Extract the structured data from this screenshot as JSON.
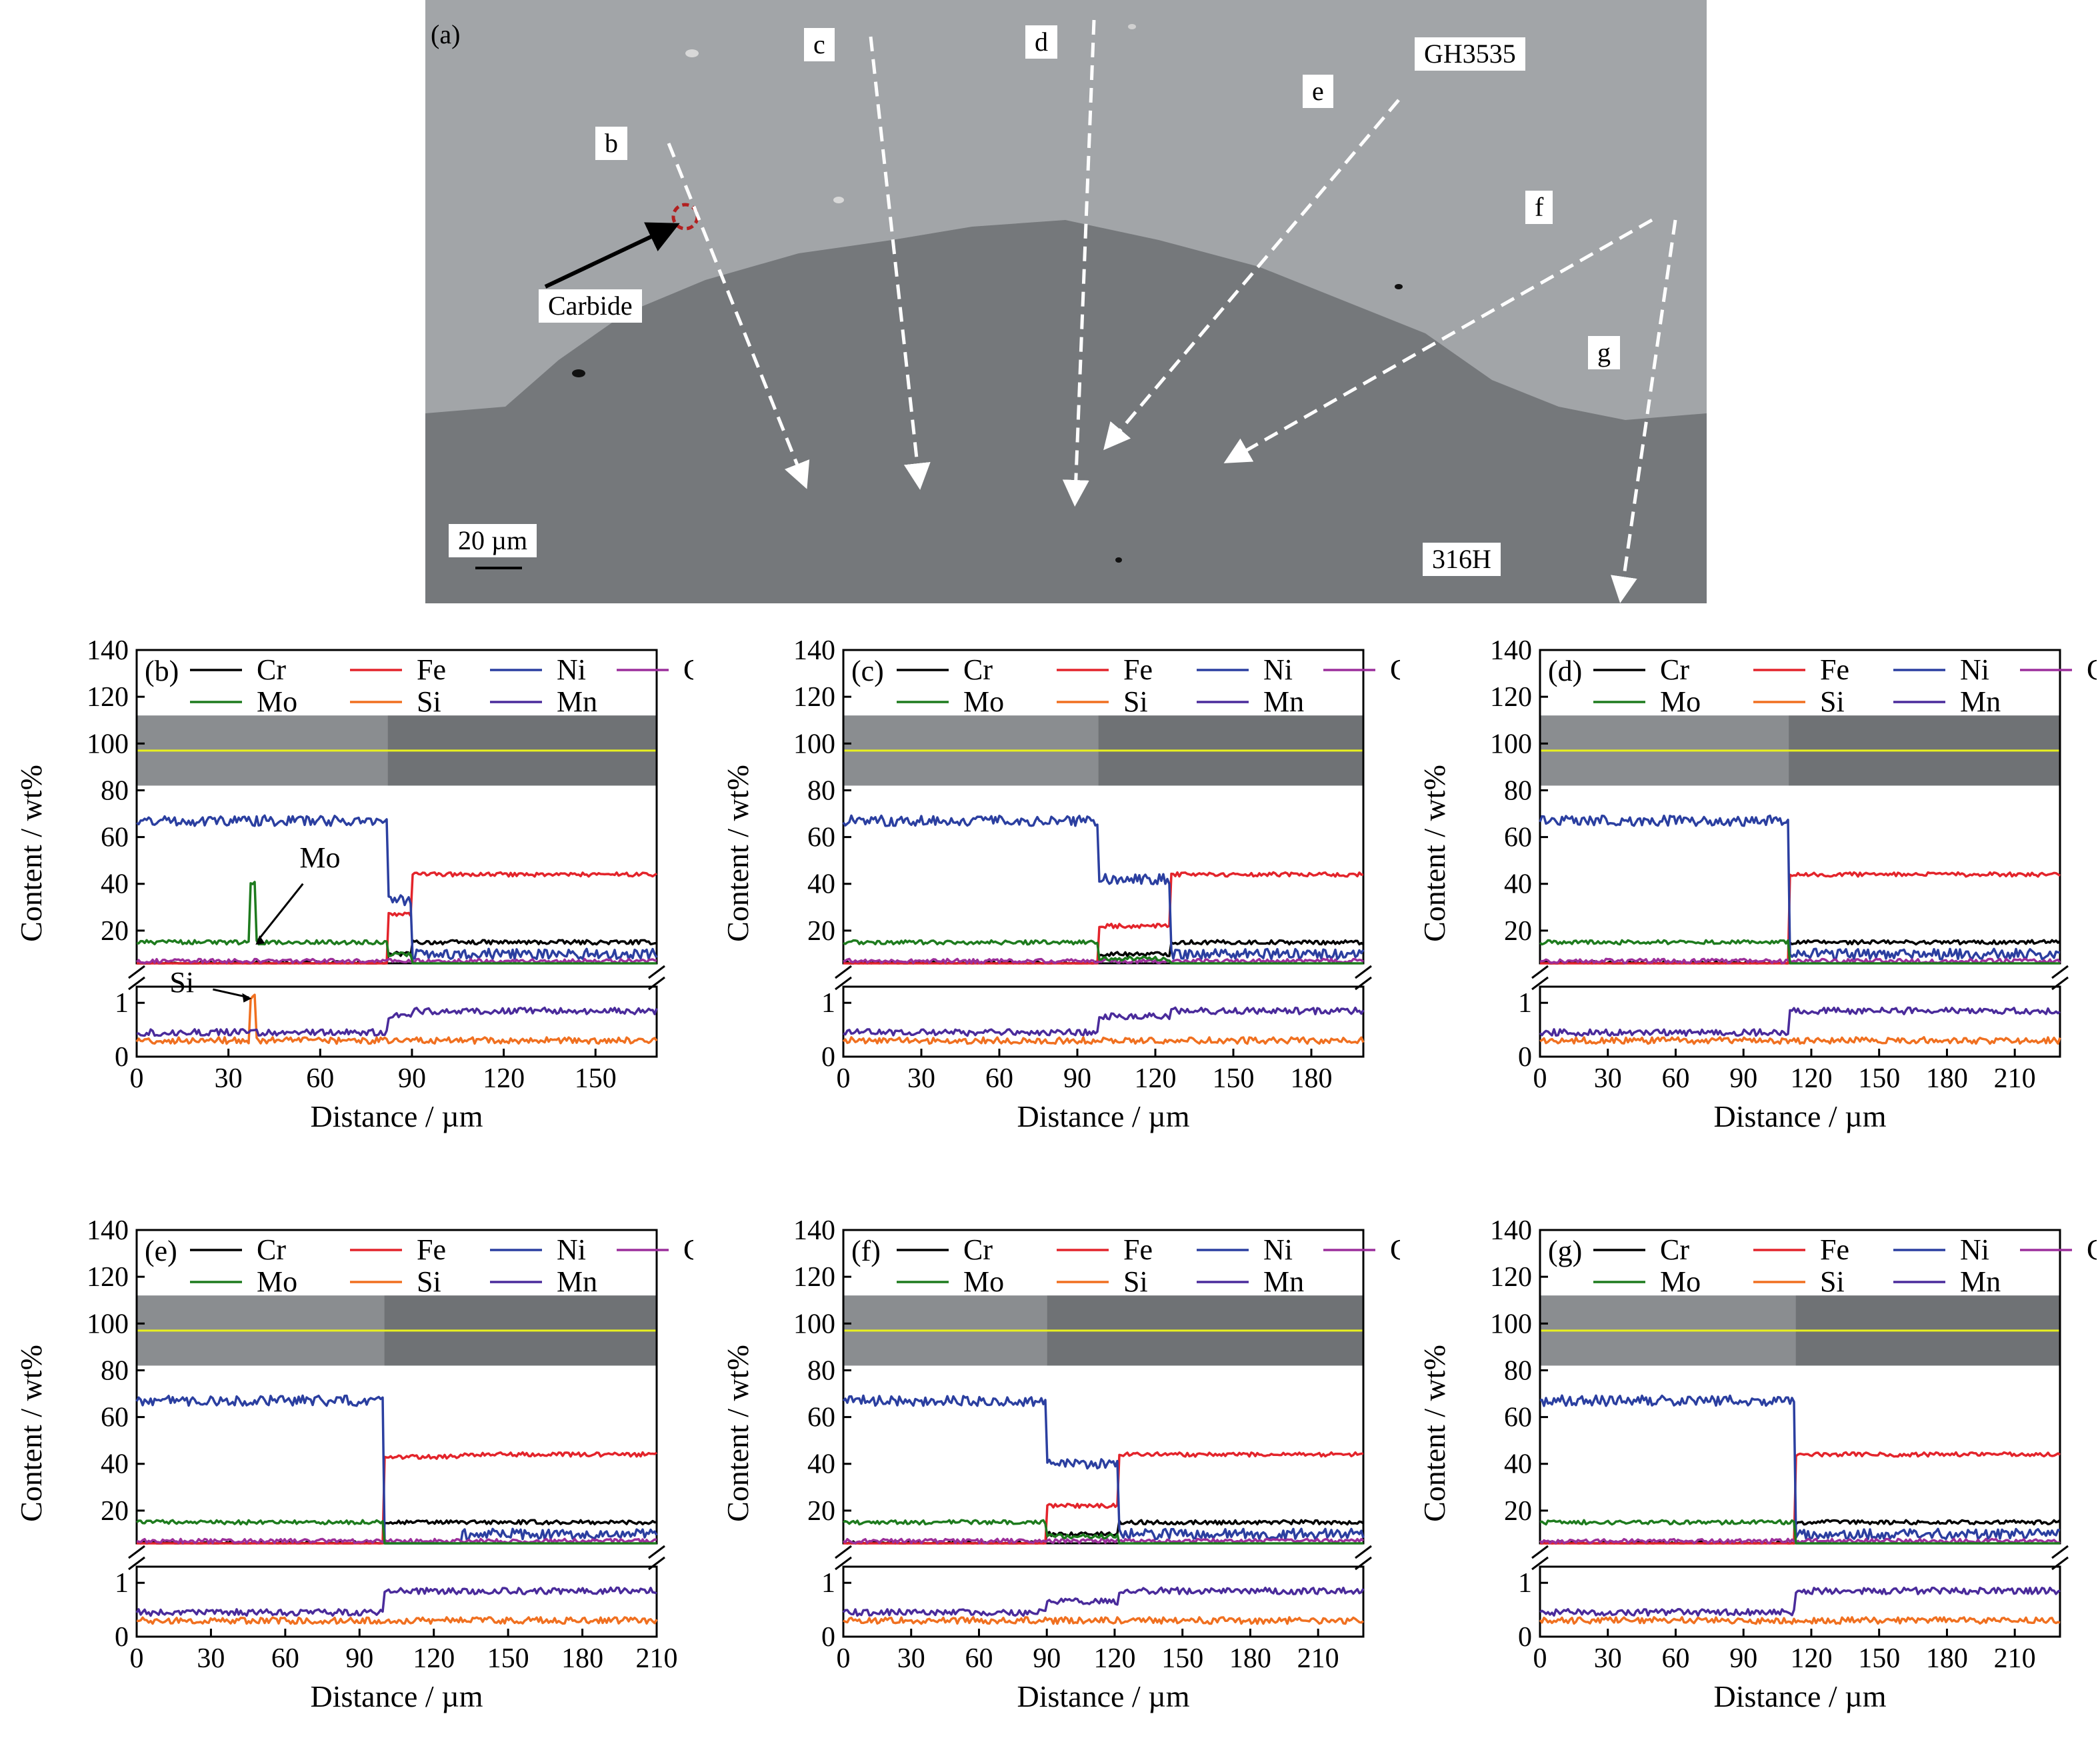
{
  "micrograph": {
    "panel_label": "(a)",
    "labels": {
      "b": "b",
      "c": "c",
      "d": "d",
      "e": "e",
      "f": "f",
      "g": "g",
      "gh": "GH3535",
      "ss": "316H",
      "carbide": "Carbide",
      "scale": "20 µm"
    },
    "colors": {
      "upper_region": "#a2a5a8",
      "lower_region": "#75787b",
      "arrow": "#ffffff",
      "carbide_marker": "#b22020"
    }
  },
  "chart_data": [
    {
      "type": "line",
      "id": "b",
      "panel_label": "(b)",
      "xlabel": "Distance / µm",
      "ylabel": "Content / wt%",
      "xlim": [
        0,
        170
      ],
      "xticks": [
        0,
        30,
        60,
        90,
        120,
        150
      ],
      "yticks_upper": [
        20,
        40,
        60,
        80,
        100,
        120,
        140
      ],
      "yticks_lower": [
        0,
        1
      ],
      "y_break": true,
      "profile": {
        "first": 82,
        "second": 90,
        "w1": 2,
        "w2": 1,
        "mid": {
          "Ni": 33,
          "Fe": 27,
          "Cr": 10,
          "Mo": 10,
          "Mn": 0.75
        }
      },
      "spike": {
        "x": 38,
        "Mo": 40,
        "Si": 1.1
      },
      "annotations": [
        "Mo",
        "Si"
      ]
    },
    {
      "type": "line",
      "id": "c",
      "panel_label": "(c)",
      "xlabel": "Distance / µm",
      "ylabel": "Content / wt%",
      "xlim": [
        0,
        200
      ],
      "xticks": [
        0,
        30,
        60,
        90,
        120,
        150,
        180
      ],
      "yticks_upper": [
        20,
        40,
        60,
        80,
        100,
        120,
        140
      ],
      "yticks_lower": [
        0,
        1
      ],
      "y_break": true,
      "profile": {
        "first": 98,
        "second": 126,
        "w1": 2,
        "w2": 1,
        "mid": {
          "Ni": 42,
          "Fe": 22,
          "Cr": 10,
          "Mo": 8,
          "Mn": 0.75
        }
      },
      "spike": null
    },
    {
      "type": "line",
      "id": "d",
      "panel_label": "(d)",
      "xlabel": "Distance / µm",
      "ylabel": "Content / wt%",
      "xlim": [
        0,
        230
      ],
      "xticks": [
        0,
        30,
        60,
        90,
        120,
        150,
        180,
        210
      ],
      "yticks_upper": [
        20,
        40,
        60,
        80,
        100,
        120,
        140
      ],
      "yticks_lower": [
        0,
        1
      ],
      "y_break": true,
      "profile": {
        "first": 110,
        "second": 110,
        "w1": 1,
        "w2": 1,
        "mid": null
      },
      "spike": null
    },
    {
      "type": "line",
      "id": "e",
      "panel_label": "(e)",
      "xlabel": "Distance / µm",
      "ylabel": "Content / wt%",
      "xlim": [
        0,
        210
      ],
      "xticks": [
        0,
        30,
        60,
        90,
        120,
        150,
        180,
        210
      ],
      "yticks_upper": [
        20,
        40,
        60,
        80,
        100,
        120,
        140
      ],
      "yticks_lower": [
        0,
        1
      ],
      "y_break": true,
      "profile": {
        "first": 100,
        "second": 131,
        "w1": 1,
        "w2": 1,
        "mid": {
          "Ni": 4,
          "Fe": 43,
          "Cr": 15,
          "Mo": 4,
          "Mn": 0.85
        }
      },
      "spike": null
    },
    {
      "type": "line",
      "id": "f",
      "panel_label": "(f)",
      "xlabel": "Distance / µm",
      "ylabel": "Content / wt%",
      "xlim": [
        0,
        230
      ],
      "xticks": [
        0,
        30,
        60,
        90,
        120,
        150,
        180,
        210
      ],
      "yticks_upper": [
        20,
        40,
        60,
        80,
        100,
        120,
        140
      ],
      "yticks_lower": [
        0,
        1
      ],
      "y_break": true,
      "profile": {
        "first": 90,
        "second": 122,
        "w1": 3,
        "w2": 1,
        "mid": {
          "Ni": 40,
          "Fe": 22,
          "Cr": 10,
          "Mo": 9,
          "Mn": 0.65
        }
      },
      "spike": null
    },
    {
      "type": "line",
      "id": "g",
      "panel_label": "(g)",
      "xlabel": "Distance / µm",
      "ylabel": "Content / wt%",
      "xlim": [
        0,
        230
      ],
      "xticks": [
        0,
        30,
        60,
        90,
        120,
        150,
        180,
        210
      ],
      "yticks_upper": [
        20,
        40,
        60,
        80,
        100,
        120,
        140
      ],
      "yticks_lower": [
        0,
        1
      ],
      "y_break": true,
      "profile": {
        "first": 113,
        "second": 113,
        "w1": 1,
        "w2": 1,
        "mid": null
      },
      "spike": null
    }
  ],
  "series": [
    {
      "name": "Cr",
      "color": "#000000",
      "left": 6,
      "right": 15,
      "band": "upper"
    },
    {
      "name": "Fe",
      "color": "#e3242b",
      "left": 4,
      "right": 44,
      "band": "upper"
    },
    {
      "name": "Ni",
      "color": "#2b3fa0",
      "left": 67,
      "right": 10,
      "band": "upper"
    },
    {
      "name": "C",
      "color": "#9b2f9b",
      "left": 7,
      "right": 7,
      "band": "upper"
    },
    {
      "name": "Mo",
      "color": "#1e7b1e",
      "left": 15,
      "right": 4,
      "band": "upper"
    },
    {
      "name": "Si",
      "color": "#f07020",
      "left": 0.3,
      "right": 0.3,
      "band": "lower"
    },
    {
      "name": "Mn",
      "color": "#4a2b9b",
      "left": 0.45,
      "right": 0.85,
      "band": "lower"
    }
  ],
  "inset": {
    "colors": {
      "left": "#8a8d90",
      "right": "#6f7275",
      "line": "#e8f020",
      "line_value": 97
    }
  }
}
